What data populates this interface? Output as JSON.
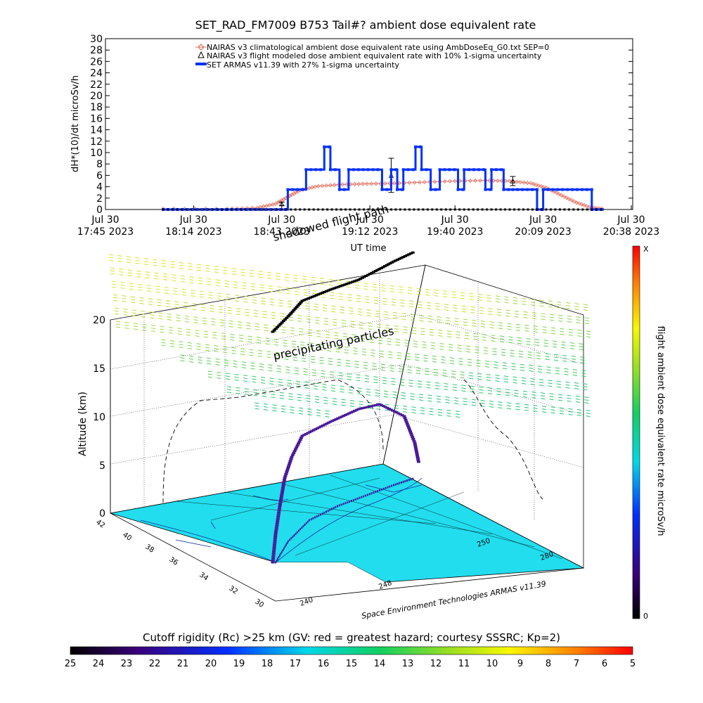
{
  "colors": {
    "nairas_clim": "#e07060",
    "nairas_flight": "#000000",
    "armas": "#0030ff",
    "ground": "#22ddee",
    "track_high": "#000000",
    "track_mid": "#4a1a9a"
  },
  "chart_data": [
    {
      "type": "line",
      "title": "SET_RAD_FM7009  B753 Tail#? ambient dose equivalent rate",
      "ylabel": "dH*(10)/dt microSv/h",
      "xlabel": "UT time",
      "ylim": [
        0,
        30
      ],
      "yticks": [
        0,
        2,
        4,
        6,
        8,
        10,
        12,
        14,
        16,
        18,
        20,
        22,
        24,
        26,
        28,
        30
      ],
      "xlim_minutes": [
        0,
        173
      ],
      "xticks": [
        {
          "t": 0,
          "l1": "Jul 30",
          "l2": "17:45 2023"
        },
        {
          "t": 29,
          "l1": "Jul 30",
          "l2": "18:14 2023"
        },
        {
          "t": 58,
          "l1": "Jul 30",
          "l2": "18:43 2023"
        },
        {
          "t": 87,
          "l1": "Jul 30",
          "l2": "19:12 2023"
        },
        {
          "t": 115,
          "l1": "Jul 30",
          "l2": "19:40 2023"
        },
        {
          "t": 144,
          "l1": "Jul 30",
          "l2": "20:09 2023"
        },
        {
          "t": 173,
          "l1": "Jul 30",
          "l2": "20:38 2023"
        }
      ],
      "legend": [
        "NAIRAS v3 climatological ambient dose equivalent rate using AmbDoseEq_G0.txt SEP=0",
        "NAIRAS v3 flight modeled dose ambient equivalent rate with 10% 1-sigma uncertainty",
        "SET ARMAS v11.39 with 27% 1-sigma uncertainty"
      ],
      "legend_position": "top-right",
      "series": [
        {
          "name": "NAIRAS v3 climatological ambient dose equivalent rate using AmbDoseEq_G0.txt SEP=0",
          "x": [
            19,
            40,
            50,
            56,
            60,
            64,
            70,
            78,
            86,
            95,
            105,
            115,
            125,
            133,
            140,
            145,
            150,
            155,
            160,
            164
          ],
          "y": [
            0.1,
            0.1,
            0.3,
            1.0,
            2.2,
            3.4,
            4.1,
            4.4,
            4.5,
            4.6,
            4.8,
            5.0,
            5.1,
            5.0,
            4.6,
            3.8,
            2.5,
            1.2,
            0.3,
            0.1
          ]
        },
        {
          "name": "NAIRAS v3 flight modeled dose ambient equivalent rate with 10% 1-sigma uncertainty",
          "points": [
            {
              "x": 58,
              "y": 1.0,
              "err": 0.3
            },
            {
              "x": 94,
              "y": 6.0,
              "err": 3.0
            },
            {
              "x": 134,
              "y": 5.0,
              "err": 0.8
            }
          ]
        },
        {
          "name": "SET ARMAS v11.39 with 27% 1-sigma uncertainty",
          "x": [
            19,
            40,
            60,
            60,
            66,
            66,
            72,
            72,
            74,
            74,
            77,
            77,
            80,
            80,
            91,
            91,
            94,
            94,
            96,
            96,
            98,
            98,
            102,
            102,
            104,
            104,
            107,
            107,
            110,
            110,
            116,
            116,
            118,
            118,
            125,
            125,
            127,
            127,
            131,
            131,
            134,
            134,
            142,
            142,
            144,
            144,
            160,
            160,
            164
          ],
          "y": [
            0,
            0,
            0,
            3.5,
            3.5,
            7,
            7,
            11,
            11,
            7,
            7,
            3.5,
            3.5,
            7,
            7,
            3.5,
            3.5,
            7,
            7,
            3.5,
            3.5,
            7,
            7,
            11,
            11,
            7,
            7,
            3.5,
            3.5,
            7,
            7,
            3.5,
            3.5,
            7,
            7,
            3.5,
            3.5,
            7,
            7,
            3.5,
            3.5,
            3.5,
            3.5,
            0,
            0,
            3.5,
            3.5,
            0,
            0
          ]
        }
      ]
    },
    {
      "type": "scatter",
      "title": "",
      "annotations": [
        "shadowed flight path",
        "precipitating particles"
      ],
      "zlabel": "Altitude (km)",
      "zticks": [
        0,
        5,
        10,
        15,
        20
      ],
      "ylabel_left_ticks": [
        42,
        40,
        38,
        36,
        34,
        32,
        30
      ],
      "xlabel_ticks": [
        240,
        248,
        250,
        280
      ],
      "credit": "Space Environment Technologies ARMAS v11.39",
      "colorbar_label": "flight ambient dose equivalent rate microSv/h",
      "colorbar_top": "X",
      "colorbar_bottom": "0"
    },
    {
      "type": "heatmap",
      "title": "Cutoff rigidity (Rc) >25 km (GV: red = greatest hazard; courtesy SSSRC; Kp=2)",
      "ticks": [
        "25",
        "24",
        "23",
        "22",
        "21",
        "20",
        "19",
        "18",
        "17",
        "16",
        "15",
        "14",
        "13",
        "12",
        "11",
        "10",
        "9",
        "8",
        "7",
        "6",
        "5"
      ]
    }
  ]
}
